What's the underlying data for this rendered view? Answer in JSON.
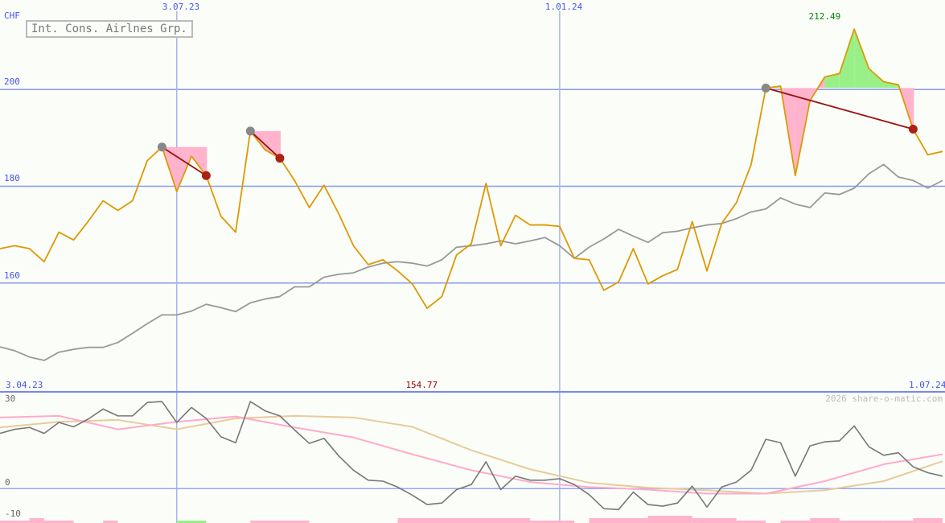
{
  "chart_data": {
    "type": "line",
    "title": "Int. Cons. Airlnes Grp.",
    "currency": "CHF",
    "copyright": "2026 share-o-matic.com",
    "date_labels": [
      {
        "text": "3.07.23",
        "index": 12,
        "position": "top"
      },
      {
        "text": "1.01.24",
        "index": 38,
        "position": "top"
      },
      {
        "text": "3.04.23",
        "index": 0,
        "position": "bottom"
      },
      {
        "text": "1.07.24",
        "index": 64,
        "position": "bottom"
      }
    ],
    "max_label": {
      "text": "212.49",
      "index": 56,
      "color": "#008800"
    },
    "min_label": {
      "text": "154.77",
      "index": 27,
      "color": "#990000"
    },
    "price_axis": {
      "ylim": [
        137.5,
        218.5
      ],
      "ticks": [
        "200",
        "180",
        "160"
      ],
      "tick_values": [
        200,
        180,
        160
      ],
      "grid": true
    },
    "series": [
      {
        "color": "#dd9900",
        "values": [
          167.1,
          167.7,
          167.1,
          164.4,
          170.5,
          168.9,
          172.8,
          177.0,
          175.0,
          177.0,
          185.3,
          188.1,
          178.9,
          186.2,
          182.2,
          173.8,
          170.5,
          191.4,
          187.5,
          185.8,
          181.2,
          175.6,
          180.2,
          174.3,
          167.7,
          163.8,
          164.8,
          162.5,
          159.8,
          154.77,
          157.2,
          165.8,
          168.1,
          180.6,
          167.7,
          174.0,
          172.0,
          172.0,
          171.7,
          165.1,
          164.8,
          158.5,
          160.2,
          167.1,
          159.8,
          161.5,
          162.8,
          172.7,
          162.5,
          172.3,
          176.6,
          184.5,
          200.3,
          200.7,
          182.2,
          197.7,
          202.6,
          203.3,
          212.49,
          204.3,
          201.6,
          201.0,
          191.8,
          186.5,
          187.2
        ]
      },
      {
        "color": "#999999",
        "values": [
          146.8,
          146.0,
          144.7,
          144.0,
          145.7,
          146.3,
          146.7,
          146.7,
          147.7,
          149.6,
          151.6,
          153.4,
          153.4,
          154.2,
          155.6,
          154.9,
          154.1,
          155.9,
          156.7,
          157.2,
          159.2,
          159.2,
          161.2,
          161.8,
          162.1,
          163.3,
          164.1,
          164.4,
          164.1,
          163.5,
          164.8,
          167.4,
          167.7,
          168.1,
          168.7,
          168.1,
          168.7,
          169.4,
          167.7,
          165.1,
          167.4,
          169.1,
          171.1,
          169.7,
          168.4,
          170.4,
          170.7,
          171.4,
          172.0,
          172.3,
          173.3,
          174.7,
          175.3,
          177.6,
          176.3,
          175.6,
          178.6,
          178.3,
          179.6,
          182.6,
          184.5,
          181.9,
          181.2,
          179.6,
          181.2
        ]
      }
    ],
    "trades": [
      {
        "entry_index": 11,
        "entry_value": 188.1,
        "exit_index": 14,
        "exit_value": 182.2
      },
      {
        "entry_index": 17,
        "entry_value": 191.4,
        "exit_index": 19,
        "exit_value": 185.8
      },
      {
        "entry_index": 52,
        "entry_value": 200.3,
        "exit_index": 62,
        "exit_value": 191.8
      }
    ],
    "indicator": {
      "ylim": [
        -11,
        31
      ],
      "ticks": [
        "30",
        "0",
        "-10"
      ],
      "tick_values": [
        30,
        0,
        -10
      ],
      "oscillator": {
        "color": "#777777",
        "values": [
          17.7,
          19.0,
          19.6,
          17.7,
          21.2,
          19.8,
          22.3,
          25.5,
          23.3,
          23.3,
          27.6,
          27.9,
          21.2,
          26.0,
          22.5,
          16.6,
          14.7,
          27.9,
          24.9,
          23.3,
          18.8,
          14.5,
          16.1,
          10.5,
          5.9,
          2.7,
          2.4,
          0.5,
          -2.1,
          -5.1,
          -4.6,
          -0.3,
          1.3,
          8.6,
          -0.3,
          4.0,
          2.7,
          2.7,
          3.2,
          1.3,
          -1.9,
          -6.4,
          -6.7,
          -1.1,
          -5.1,
          -5.6,
          -4.6,
          0.8,
          -5.9,
          0.5,
          2.1,
          5.9,
          15.8,
          14.7,
          4.0,
          13.7,
          15.0,
          15.3,
          20.1,
          13.4,
          10.7,
          11.5,
          7.0,
          5.1,
          4.0
        ]
      },
      "signal_step": 4,
      "signal_pink": {
        "color": "#ffaacc",
        "values": [
          22.8,
          23.3,
          19.0,
          21.4,
          23.1,
          19.6,
          16.4,
          11.0,
          5.9,
          2.1,
          0.5,
          -0.3,
          -1.6,
          -1.6,
          2.4,
          7.8,
          11.0
        ]
      },
      "signal_tan": {
        "color": "#e6cc99",
        "values": [
          19.6,
          21.4,
          22.0,
          19.0,
          22.5,
          23.3,
          22.8,
          19.8,
          12.3,
          6.2,
          1.9,
          0.3,
          -0.5,
          -1.6,
          -0.5,
          2.4,
          8.8
        ]
      }
    },
    "volume_bars": [
      {
        "from": 0,
        "to": 2,
        "level": 1,
        "color": "#ffb3cc"
      },
      {
        "from": 2,
        "to": 3,
        "level": 2,
        "color": "#ffb3cc"
      },
      {
        "from": 3,
        "to": 5,
        "level": 1,
        "color": "#ffb3cc"
      },
      {
        "from": 7,
        "to": 8,
        "level": 1,
        "color": "#ffb3cc"
      },
      {
        "from": 12,
        "to": 14,
        "level": 1,
        "color": "#99ee88"
      },
      {
        "from": 17,
        "to": 21,
        "level": 1,
        "color": "#ffb3cc"
      },
      {
        "from": 27,
        "to": 33,
        "level": 2,
        "color": "#ffb3cc"
      },
      {
        "from": 33,
        "to": 36,
        "level": 2,
        "color": "#ffb3cc"
      },
      {
        "from": 36,
        "to": 39,
        "level": 1,
        "color": "#ffb3cc"
      },
      {
        "from": 40,
        "to": 44,
        "level": 2,
        "color": "#ffb3cc"
      },
      {
        "from": 44,
        "to": 47,
        "level": 3,
        "color": "#ffb3cc"
      },
      {
        "from": 47,
        "to": 50,
        "level": 2,
        "color": "#ffb3cc"
      },
      {
        "from": 50,
        "to": 52,
        "level": 1,
        "color": "#ffb3cc"
      },
      {
        "from": 53,
        "to": 55,
        "level": 1,
        "color": "#ffb3cc"
      },
      {
        "from": 55,
        "to": 57,
        "level": 2,
        "color": "#ffb3cc"
      },
      {
        "from": 57,
        "to": 60,
        "level": 1,
        "color": "#ffb3cc"
      },
      {
        "from": 60,
        "to": 62,
        "level": 1,
        "color": "#ffb3cc"
      },
      {
        "from": 62,
        "to": 64,
        "level": 2,
        "color": "#ffb3cc"
      }
    ]
  }
}
